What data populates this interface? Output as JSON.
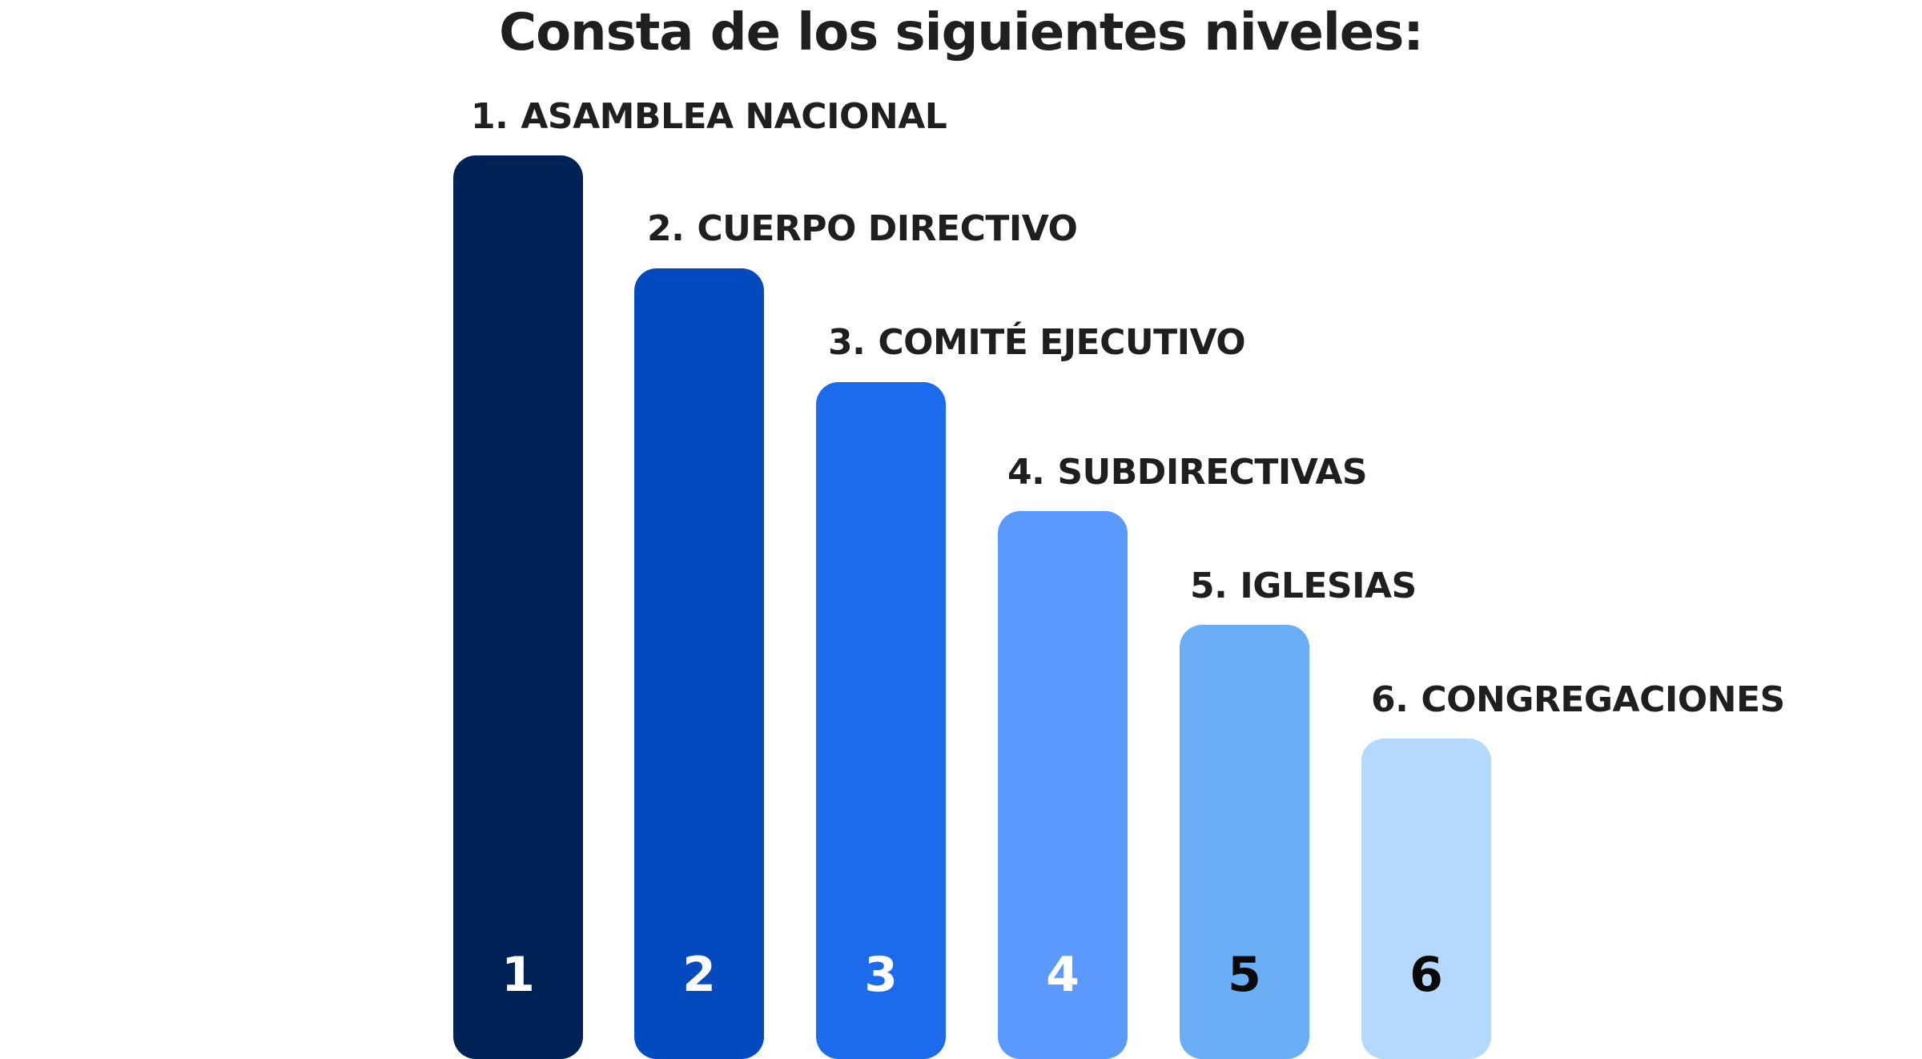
{
  "title": "Consta de los siguientes niveles:",
  "levels": [
    {
      "num_label": "1.",
      "name": "ASAMBLEA NACIONAL",
      "bar_number": "1",
      "color": "#012257",
      "number_color": "#ffffff"
    },
    {
      "num_label": "2.",
      "name": "CUERPO DIRECTIVO",
      "bar_number": "2",
      "color": "#024abe",
      "number_color": "#ffffff"
    },
    {
      "num_label": "3.",
      "name": "COMITÉ EJECUTIVO",
      "bar_number": "3",
      "color": "#1d6bed",
      "number_color": "#ffffff"
    },
    {
      "num_label": "4.",
      "name": "SUBDIRECTIVAS",
      "bar_number": "4",
      "color": "#5a99fe",
      "number_color": "#ffffff"
    },
    {
      "num_label": "5.",
      "name": "IGLESIAS",
      "bar_number": "5",
      "color": "#6aaff5",
      "number_color": "#0a0a0a"
    },
    {
      "num_label": "6.",
      "name": "CONGREGACIONES",
      "bar_number": "6",
      "color": "#b5d8fd",
      "number_color": "#0a0a0a"
    }
  ]
}
